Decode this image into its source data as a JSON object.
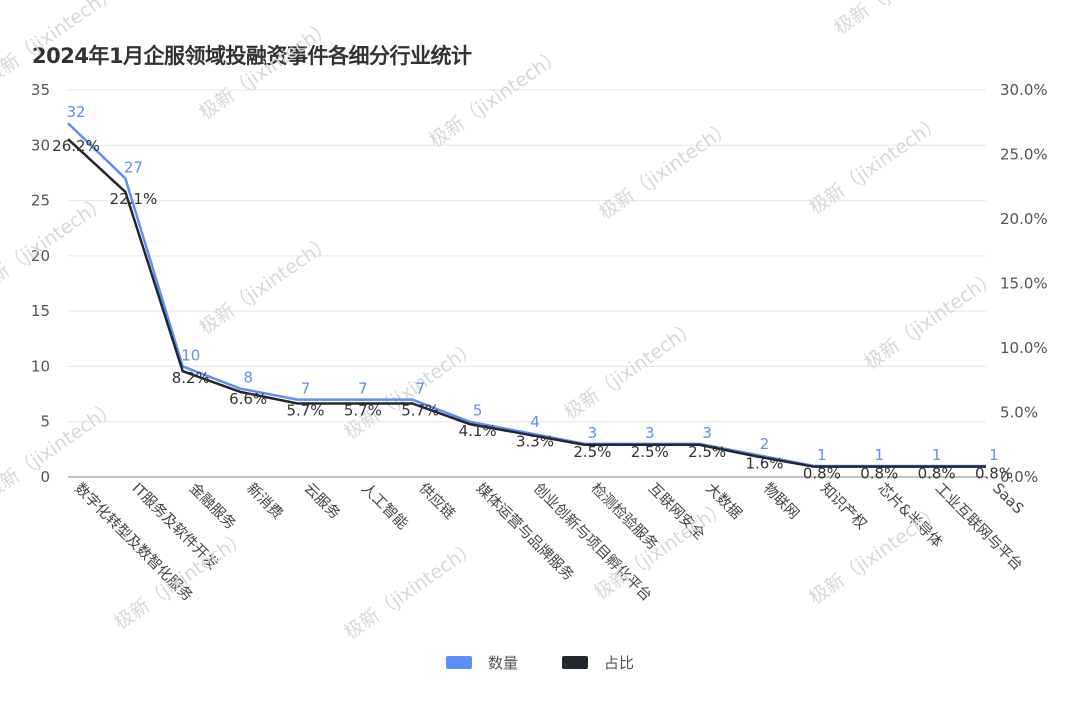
{
  "title": "2024年1月企服领域投融资事件各细分行业统计",
  "watermark": "极新（jixintech）",
  "chart_data": {
    "type": "line",
    "categories": [
      "数字化转型及数智化服务",
      "IT服务及软件开发",
      "金融服务",
      "新消费",
      "云服务",
      "人工智能",
      "供应链",
      "媒体运营与品牌服务",
      "创业创新与项目孵化平台",
      "检测检验服务",
      "互联网安全",
      "大数据",
      "物联网",
      "知识产权",
      "芯片&半导体",
      "工业互联网与平台",
      "SaaS"
    ],
    "series": [
      {
        "name": "数量",
        "axis": "left",
        "color": "#5b8ff9",
        "values": [
          32,
          27,
          10,
          8,
          7,
          7,
          7,
          5,
          4,
          3,
          3,
          3,
          2,
          1,
          1,
          1,
          1
        ],
        "labels": [
          "32",
          "27",
          "10",
          "8",
          "7",
          "7",
          "7",
          "5",
          "4",
          "3",
          "3",
          "3",
          "2",
          "1",
          "1",
          "1",
          "1"
        ]
      },
      {
        "name": "占比",
        "axis": "right",
        "color": "#22262e",
        "values": [
          26.2,
          22.1,
          8.2,
          6.6,
          5.7,
          5.7,
          5.7,
          4.1,
          3.3,
          2.5,
          2.5,
          2.5,
          1.6,
          0.8,
          0.8,
          0.8,
          0.8
        ],
        "labels": [
          "26.2%",
          "22.1%",
          "8.2%",
          "6.6%",
          "5.7%",
          "5.7%",
          "5.7%",
          "4.1%",
          "3.3%",
          "2.5%",
          "2.5%",
          "2.5%",
          "1.6%",
          "0.8%",
          "0.8%",
          "0.8%",
          "0.8%"
        ]
      }
    ],
    "y_left": {
      "range": [
        0,
        35
      ],
      "ticks": [
        "0",
        "5",
        "10",
        "15",
        "20",
        "25",
        "30",
        "35"
      ]
    },
    "y_right": {
      "range": [
        0,
        30
      ],
      "ticks": [
        "0.0%",
        "5.0%",
        "10.0%",
        "15.0%",
        "20.0%",
        "25.0%",
        "30.0%"
      ]
    },
    "grid": true,
    "legend_position": "bottom"
  }
}
